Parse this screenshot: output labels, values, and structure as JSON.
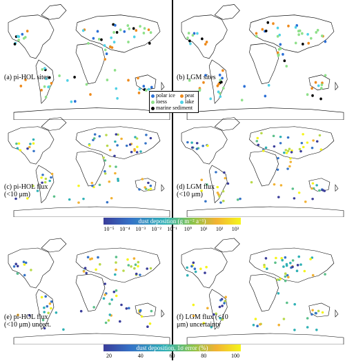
{
  "panels": {
    "a": {
      "label": "(a) pi-HOL sites"
    },
    "b": {
      "label": "(b) LGM sites"
    },
    "c": {
      "label": "(c) pi-HOL flux\n(<10 μm)"
    },
    "d": {
      "label": "(d) LGM flux\n(<10 μm)"
    },
    "e": {
      "label": "(e) pi-HOL flux\n(<10 μm) uncert."
    },
    "f": {
      "label": "(f) LGM flux (<10\nμm) uncertainty"
    }
  },
  "legend": {
    "polar_ice": {
      "label": "polar ice",
      "color": "#2a6fd6"
    },
    "peat": {
      "label": "peat",
      "color": "#ee8a1c"
    },
    "loess": {
      "label": "loess",
      "color": "#8fe08a"
    },
    "lake": {
      "label": "lake",
      "color": "#4fd1e6"
    },
    "marine": {
      "label": "marine sediment",
      "color": "#000000"
    }
  },
  "colorbar1": {
    "title": "dust deposition (g m⁻² a⁻¹)",
    "ticks": [
      "10⁻⁵",
      "10⁻⁴",
      "10⁻³",
      "10⁻²",
      "10⁻¹",
      "10⁰",
      "10¹",
      "10²",
      "10³"
    ]
  },
  "colorbar2": {
    "title": "dust deposition, 1σ error (%)",
    "ticks": [
      "20",
      "40",
      "60",
      "80",
      "100"
    ]
  },
  "colors": {
    "viridis_start": "#3a3d9a",
    "viridis_mid": "#2fb1b5",
    "viridis_end": "#f5f51c",
    "background": "#ffffff"
  }
}
